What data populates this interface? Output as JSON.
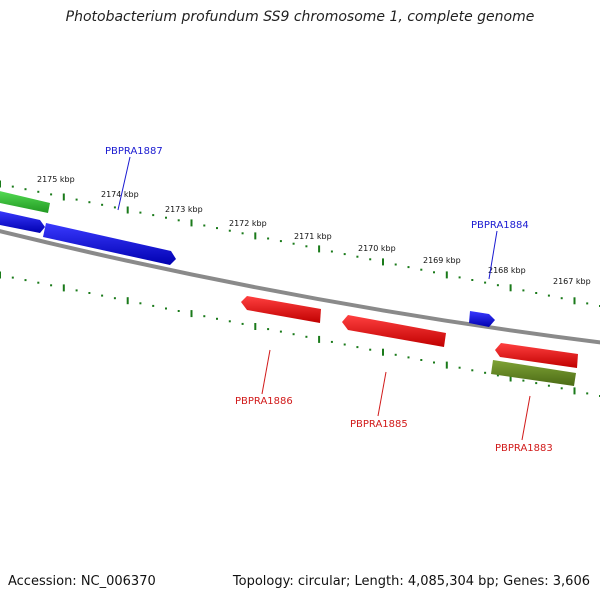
{
  "header": {
    "title": "Photobacterium profundum SS9 chromosome 1, complete genome"
  },
  "footer": {
    "accession": "Accession: NC_006370",
    "summary": "Topology: circular; Length: 4,085,304 bp; Genes: 3,606"
  },
  "ticks": [
    "2175 kbp",
    "2174 kbp",
    "2173 kbp",
    "2172 kbp",
    "2171 kbp",
    "2170 kbp",
    "2169 kbp",
    "2168 kbp",
    "2167 kbp"
  ],
  "genes": {
    "upper": [
      {
        "label": "PBPRA1887",
        "color": "#1a1ad1"
      },
      {
        "label": "PBPRA1884",
        "color": "#1a1ad1"
      }
    ],
    "lower": [
      {
        "label": "PBPRA1886",
        "color": "#d11a1a"
      },
      {
        "label": "PBPRA1885",
        "color": "#d11a1a"
      },
      {
        "label": "PBPRA1883",
        "color": "#d11a1a"
      }
    ]
  },
  "colors": {
    "forward_gene": "#1010e0",
    "reverse_gene": "#ee1010",
    "green_gene": "#33bb33",
    "olive_gene": "#6b8e23",
    "backbone": "#777777",
    "tick": "#1a7a1a"
  }
}
